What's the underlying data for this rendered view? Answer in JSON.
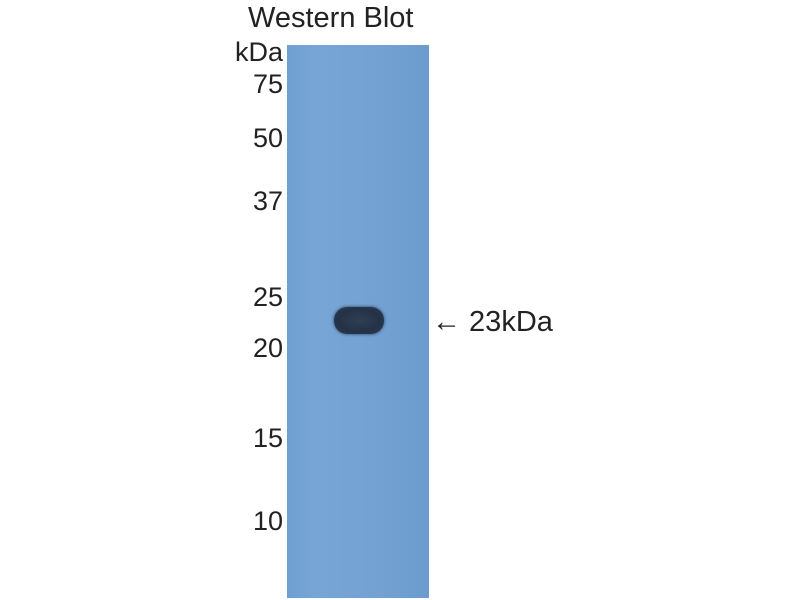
{
  "title": "Western Blot",
  "unit_label": "kDa",
  "markers": [
    "75",
    "50",
    "37",
    "25",
    "20",
    "15",
    "10"
  ],
  "band_annotation": "← 23kDa",
  "colors": {
    "membrane": "#73a2d3",
    "band": "#27354a"
  }
}
